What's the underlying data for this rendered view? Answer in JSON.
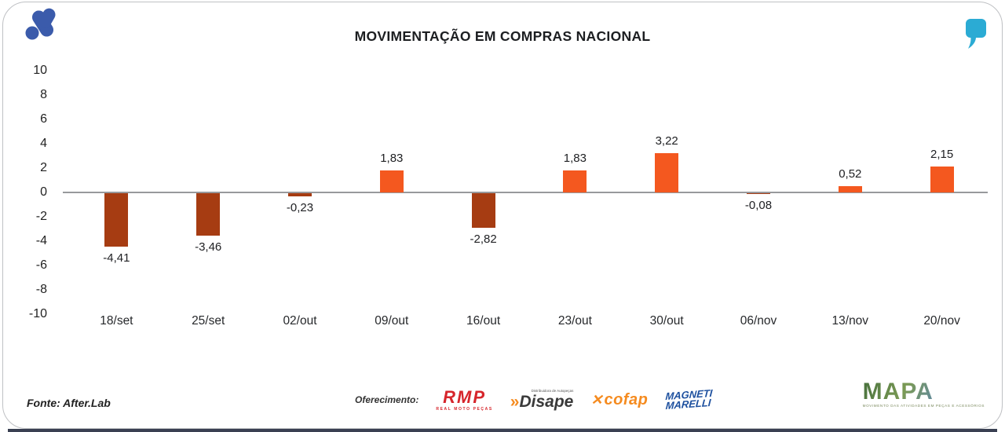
{
  "header": {
    "title": "MOVIMENTAÇÃO EM COMPRAS NACIONAL",
    "brand_icon": "afterlab-mark",
    "brand_color": "#3b5bab",
    "quote_icon": "quote-mark",
    "quote_color": "#2babd4"
  },
  "chart_data": {
    "type": "bar",
    "title": "MOVIMENTAÇÃO EM COMPRAS NACIONAL",
    "categories": [
      "18/set",
      "25/set",
      "02/out",
      "09/out",
      "16/out",
      "23/out",
      "30/out",
      "06/nov",
      "13/nov",
      "20/nov"
    ],
    "values": [
      -4.41,
      -3.46,
      -0.23,
      1.83,
      -2.82,
      1.83,
      3.22,
      -0.08,
      0.52,
      2.15
    ],
    "value_labels": [
      "-4,41",
      "-3,46",
      "-0,23",
      "1,83",
      "-2,82",
      "1,83",
      "3,22",
      "-0,08",
      "0,52",
      "2,15"
    ],
    "y_ticks": [
      "10",
      "8",
      "6",
      "4",
      "2",
      "0",
      "-2",
      "-4",
      "-6",
      "-8",
      "-10"
    ],
    "ylim": [
      -10,
      10
    ],
    "grid": false,
    "legend": "none",
    "colors": {
      "positive": "#f4581f",
      "negative": "#a63c12",
      "axis_line": "#98999c"
    }
  },
  "footer": {
    "source": "Fonte: After.Lab",
    "sponsor_label": "Oferecimento:",
    "sponsors": {
      "rmp": {
        "name": "RMP",
        "subtext": "REAL MOTO PEÇAS"
      },
      "disape": {
        "prefix": "»",
        "name": "Disape",
        "subtext": "Distribuidora de Autopeças"
      },
      "cofap": {
        "icon": "✕",
        "name": "cofap"
      },
      "magneti": {
        "line1": "MAGNETI",
        "line2": "MARELLI"
      }
    },
    "mapa": {
      "name": "MAPA",
      "subtext": "MOVIMENTO DAS ATIVIDADES EM PEÇAS E ACESSÓRIOS"
    }
  }
}
